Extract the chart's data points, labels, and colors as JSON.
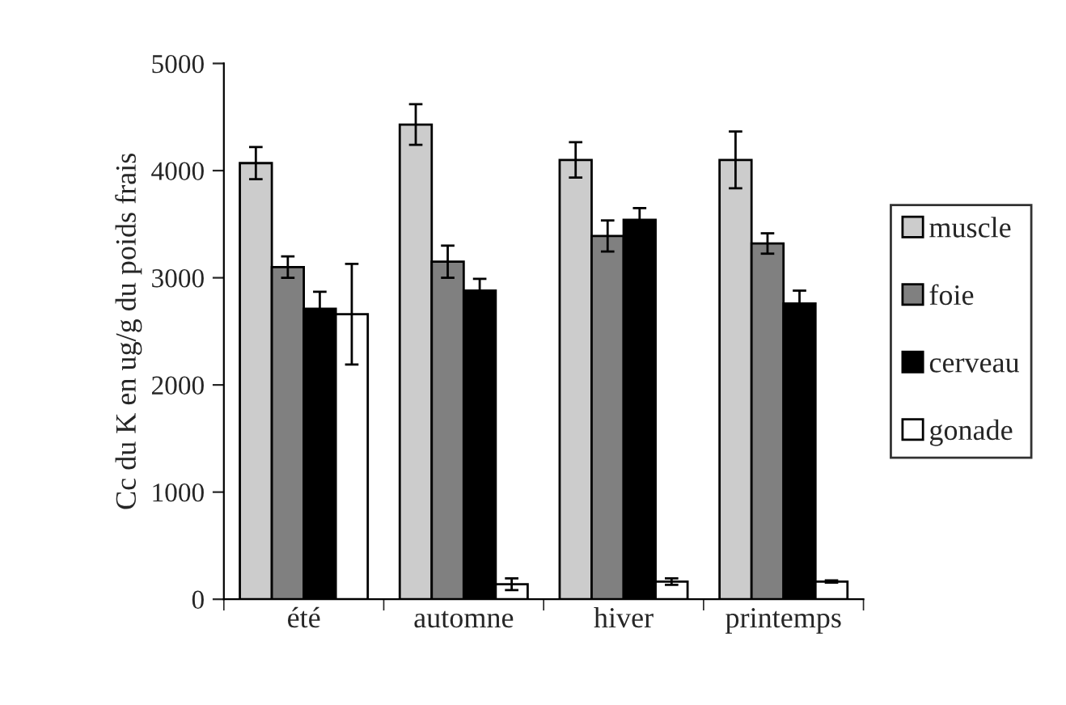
{
  "chart_data": {
    "type": "bar",
    "ylabel": "Cc du K en ug/g du poids frais",
    "categories": [
      "été",
      "automne",
      "hiver",
      "printemps"
    ],
    "series": [
      {
        "name": "muscle",
        "color": "#cccccc",
        "values": [
          4070,
          4430,
          4100,
          4100
        ],
        "errors": [
          150,
          190,
          165,
          265
        ]
      },
      {
        "name": "foie",
        "color": "#808080",
        "values": [
          3100,
          3150,
          3390,
          3320
        ],
        "errors": [
          100,
          150,
          145,
          95
        ]
      },
      {
        "name": "cerveau",
        "color": "#000000",
        "values": [
          2710,
          2880,
          3540,
          2760
        ],
        "errors": [
          160,
          110,
          110,
          120
        ]
      },
      {
        "name": "gonade",
        "color": "#ffffff",
        "values": [
          2660,
          140,
          165,
          165
        ],
        "errors": [
          470,
          55,
          30,
          10
        ]
      }
    ],
    "ylim": [
      0,
      5000
    ],
    "yticks": [
      0,
      1000,
      2000,
      3000,
      4000,
      5000
    ],
    "grid": false,
    "legend": "right"
  }
}
